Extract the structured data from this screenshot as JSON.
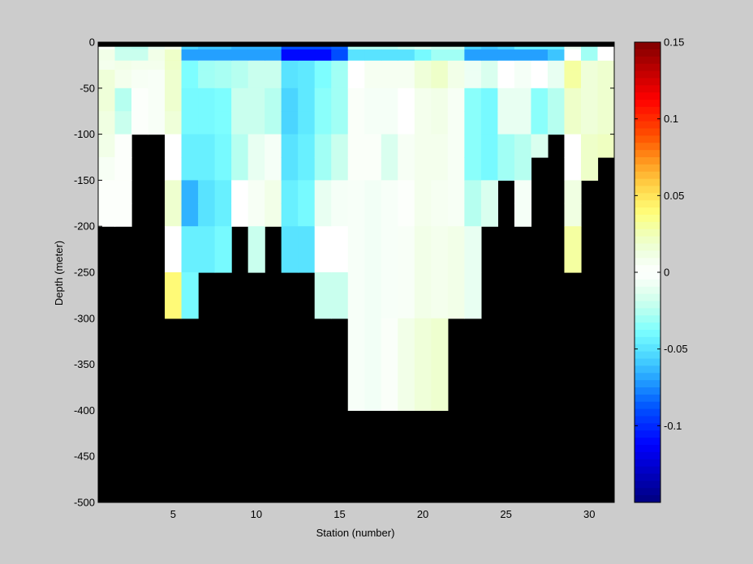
{
  "chart_data": {
    "type": "heatmap",
    "xlabel": "Station (number)",
    "ylabel": "Depth (meter)",
    "xlim": [
      1,
      31
    ],
    "ylim": [
      -500,
      0
    ],
    "x_ticks": [
      5,
      10,
      15,
      20,
      25,
      30
    ],
    "y_ticks": [
      0,
      -50,
      -100,
      -150,
      -200,
      -250,
      -300,
      -350,
      -400,
      -450,
      -500
    ],
    "colorbar": {
      "range": [
        -0.15,
        0.15
      ],
      "ticks": [
        0.15,
        0.1,
        0.05,
        0,
        -0.05,
        -0.1
      ],
      "tick_labels": [
        "0.15",
        "0.1",
        "0.05",
        "0",
        "-0.05",
        "-0.1"
      ],
      "colormap": "jet-white-center"
    },
    "no_data_color": "#000000",
    "stations": [
      1,
      2,
      3,
      4,
      5,
      6,
      7,
      8,
      9,
      10,
      11,
      12,
      13,
      14,
      15,
      16,
      17,
      18,
      19,
      20,
      21,
      22,
      23,
      24,
      25,
      26,
      27,
      28,
      29,
      30,
      31
    ],
    "bottom_depth": [
      -200,
      -200,
      -100,
      -100,
      -300,
      -300,
      -250,
      -250,
      -200,
      -250,
      -200,
      -250,
      -250,
      -300,
      -300,
      -400,
      -400,
      -400,
      -400,
      -400,
      -400,
      -300,
      -300,
      -200,
      -150,
      -200,
      -125,
      -100,
      -250,
      -150,
      -125
    ],
    "depth_levels": [
      0,
      -10,
      -20,
      -30,
      -50,
      -75,
      -100,
      -125,
      -150,
      -175,
      -200,
      -250,
      -300,
      -400
    ],
    "values_by_station": [
      [
        0.003,
        -0.003,
        0.008,
        0.015,
        0.015,
        0.012,
        0.01,
        0.005,
        0.002,
        0.002,
        0.002
      ],
      [
        -0.023,
        0.008,
        0.01,
        0.008,
        -0.025,
        -0.02,
        0.002,
        0.002,
        0.002,
        0.002,
        0.002
      ],
      [
        -0.025,
        0.008,
        0.008,
        0.005,
        0.002,
        0.002,
        0.002
      ],
      [
        -0.01,
        0.01,
        0.008,
        0.004,
        0.004,
        0.004,
        0.004
      ],
      [
        0.008,
        0.03,
        0.02,
        0.018,
        0.018,
        0.015,
        0.0,
        0.0,
        0.018,
        0.018,
        0.0,
        0.04,
        0.04
      ],
      [
        -0.055,
        0.0,
        -0.038,
        -0.038,
        -0.04,
        -0.04,
        -0.045,
        -0.045,
        -0.065,
        -0.065,
        -0.045,
        -0.04
      ],
      [
        -0.06,
        0.0,
        -0.03,
        -0.03,
        -0.04,
        -0.04,
        -0.045,
        -0.045,
        -0.05,
        -0.05,
        -0.045,
        -0.04
      ],
      [
        -0.06,
        -0.005,
        -0.028,
        -0.028,
        -0.038,
        -0.038,
        -0.04,
        -0.04,
        -0.045,
        -0.045,
        -0.04,
        -0.04
      ],
      [
        -0.065,
        -0.008,
        -0.025,
        -0.025,
        -0.02,
        -0.02,
        -0.025,
        -0.025,
        0.0,
        0.0
      ],
      [
        -0.065,
        -0.01,
        -0.02,
        -0.02,
        -0.02,
        -0.02,
        -0.01,
        -0.01,
        0.005,
        0.005,
        -0.02,
        -0.02
      ],
      [
        -0.065,
        -0.015,
        -0.02,
        -0.02,
        -0.025,
        -0.025,
        -0.005,
        -0.005,
        0.01,
        0.01
      ],
      [
        -0.09,
        -0.09,
        -0.05,
        -0.05,
        -0.055,
        -0.055,
        -0.05,
        -0.05,
        -0.045,
        -0.045,
        -0.05,
        -0.05
      ],
      [
        -0.09,
        -0.09,
        -0.048,
        -0.048,
        -0.048,
        -0.048,
        -0.045,
        -0.045,
        -0.04,
        -0.04,
        -0.05,
        -0.05
      ],
      [
        -0.09,
        -0.09,
        -0.038,
        -0.038,
        -0.035,
        -0.035,
        -0.03,
        -0.03,
        -0.01,
        -0.01,
        0.0,
        -0.02,
        -0.02
      ],
      [
        -0.085,
        -0.085,
        -0.03,
        -0.03,
        -0.03,
        -0.03,
        -0.02,
        -0.02,
        -0.005,
        -0.005,
        0.0,
        -0.02,
        -0.02
      ],
      [
        -0.025,
        -0.025,
        0.0,
        0.0,
        0.003,
        0.003,
        0.003,
        0.003,
        -0.004,
        -0.004,
        -0.004,
        -0.004,
        -0.004,
        -0.004
      ],
      [
        -0.025,
        -0.025,
        0.006,
        0.006,
        -0.005,
        -0.005,
        0.003,
        0.003,
        -0.006,
        -0.006,
        -0.006,
        -0.006,
        -0.006,
        -0.006
      ],
      [
        -0.025,
        -0.025,
        0.006,
        0.006,
        -0.005,
        -0.005,
        -0.015,
        -0.015,
        -0.004,
        -0.004,
        -0.004,
        -0.004,
        0.003,
        0.003
      ],
      [
        -0.02,
        -0.02,
        0.006,
        0.006,
        0.0,
        0.0,
        0.005,
        0.005,
        0.002,
        0.002,
        0.004,
        0.004,
        0.01,
        0.012
      ],
      [
        -0.015,
        -0.015,
        0.015,
        0.015,
        0.008,
        0.008,
        0.008,
        0.008,
        0.008,
        0.008,
        0.01,
        0.01,
        0.015,
        0.015
      ],
      [
        -0.02,
        -0.02,
        0.02,
        0.02,
        0.01,
        0.01,
        0.008,
        0.008,
        0.006,
        0.006,
        0.008,
        0.008,
        0.018,
        0.018
      ],
      [
        -0.02,
        -0.02,
        0.01,
        0.01,
        0.005,
        0.005,
        0.005,
        0.005,
        0.005,
        0.005,
        0.01,
        0.01
      ],
      [
        -0.055,
        -0.055,
        -0.008,
        -0.008,
        -0.035,
        -0.035,
        -0.035,
        -0.035,
        -0.025,
        -0.025,
        -0.01,
        -0.01
      ],
      [
        -0.06,
        -0.06,
        -0.015,
        -0.015,
        -0.04,
        -0.04,
        -0.04,
        -0.04,
        -0.015,
        -0.015,
        -0.01,
        -0.01
      ],
      [
        -0.055,
        -0.055,
        0.0,
        0.0,
        -0.01,
        -0.01,
        -0.03,
        -0.03,
        -0.035,
        -0.035
      ],
      [
        -0.045,
        -0.045,
        -0.005,
        -0.005,
        -0.01,
        -0.01,
        -0.025,
        -0.025,
        -0.005,
        -0.005,
        -0.005
      ],
      [
        -0.045,
        -0.045,
        0.0,
        0.0,
        -0.035,
        -0.035,
        -0.015,
        -0.015
      ],
      [
        -0.045,
        -0.045,
        -0.01,
        -0.01,
        -0.025,
        -0.025,
        0.0
      ],
      [
        -0.008,
        -0.008,
        0.03,
        0.03,
        0.02,
        0.02,
        0.0,
        0.0,
        0.012,
        0.012,
        0.03,
        0.03
      ],
      [
        -0.03,
        -0.03,
        0.015,
        0.015,
        0.015,
        0.015,
        0.02,
        0.02,
        0.005,
        0.005
      ],
      [
        0.0,
        0.0,
        0.018,
        0.018,
        0.018,
        0.018,
        0.022,
        0.022,
        0.0,
        0.0
      ]
    ],
    "surface_row_values": [
      0.01,
      -0.02,
      -0.02,
      0.01,
      0.02,
      -0.07,
      -0.07,
      -0.07,
      -0.07,
      -0.07,
      -0.07,
      -0.11,
      -0.11,
      -0.11,
      -0.09,
      -0.05,
      -0.05,
      -0.05,
      -0.05,
      -0.04,
      -0.03,
      -0.03,
      -0.07,
      -0.07,
      -0.07,
      -0.07,
      -0.07,
      -0.06,
      0.0,
      -0.03,
      0.0
    ]
  }
}
